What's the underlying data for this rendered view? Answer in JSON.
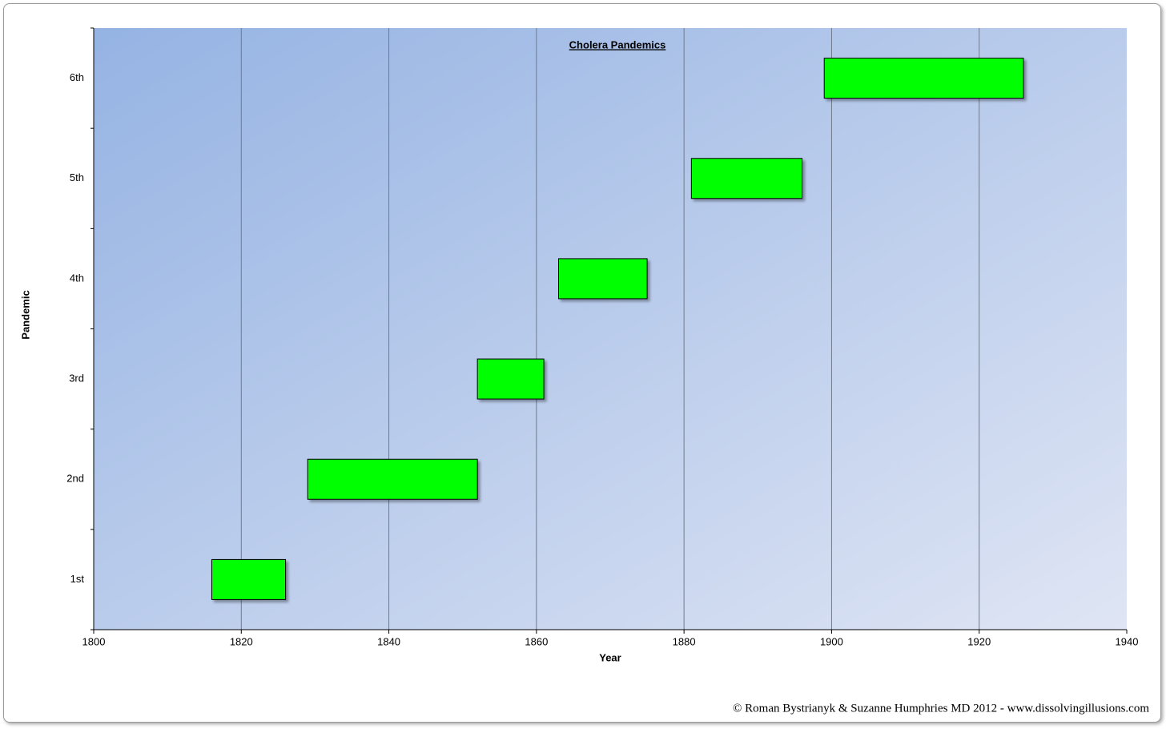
{
  "chart_data": {
    "type": "gantt",
    "title": "Cholera Pandemics",
    "x_label": "Year",
    "y_label": "Pandemic",
    "categories": [
      "1st",
      "2nd",
      "3rd",
      "4th",
      "5th",
      "6th"
    ],
    "start": [
      1816,
      1829,
      1852,
      1863,
      1881,
      1899
    ],
    "end": [
      1826,
      1852,
      1861,
      1875,
      1896,
      1926
    ],
    "color": "#00ff00",
    "xlim": [
      1800,
      1940
    ],
    "xticks": [
      1800,
      1820,
      1840,
      1860,
      1880,
      1900,
      1920,
      1940
    ],
    "grid": true
  },
  "footer": {
    "copyright": "© Roman Bystrianyk & Suzanne Humphries MD 2012 - www.dissolvingillusions.com"
  }
}
